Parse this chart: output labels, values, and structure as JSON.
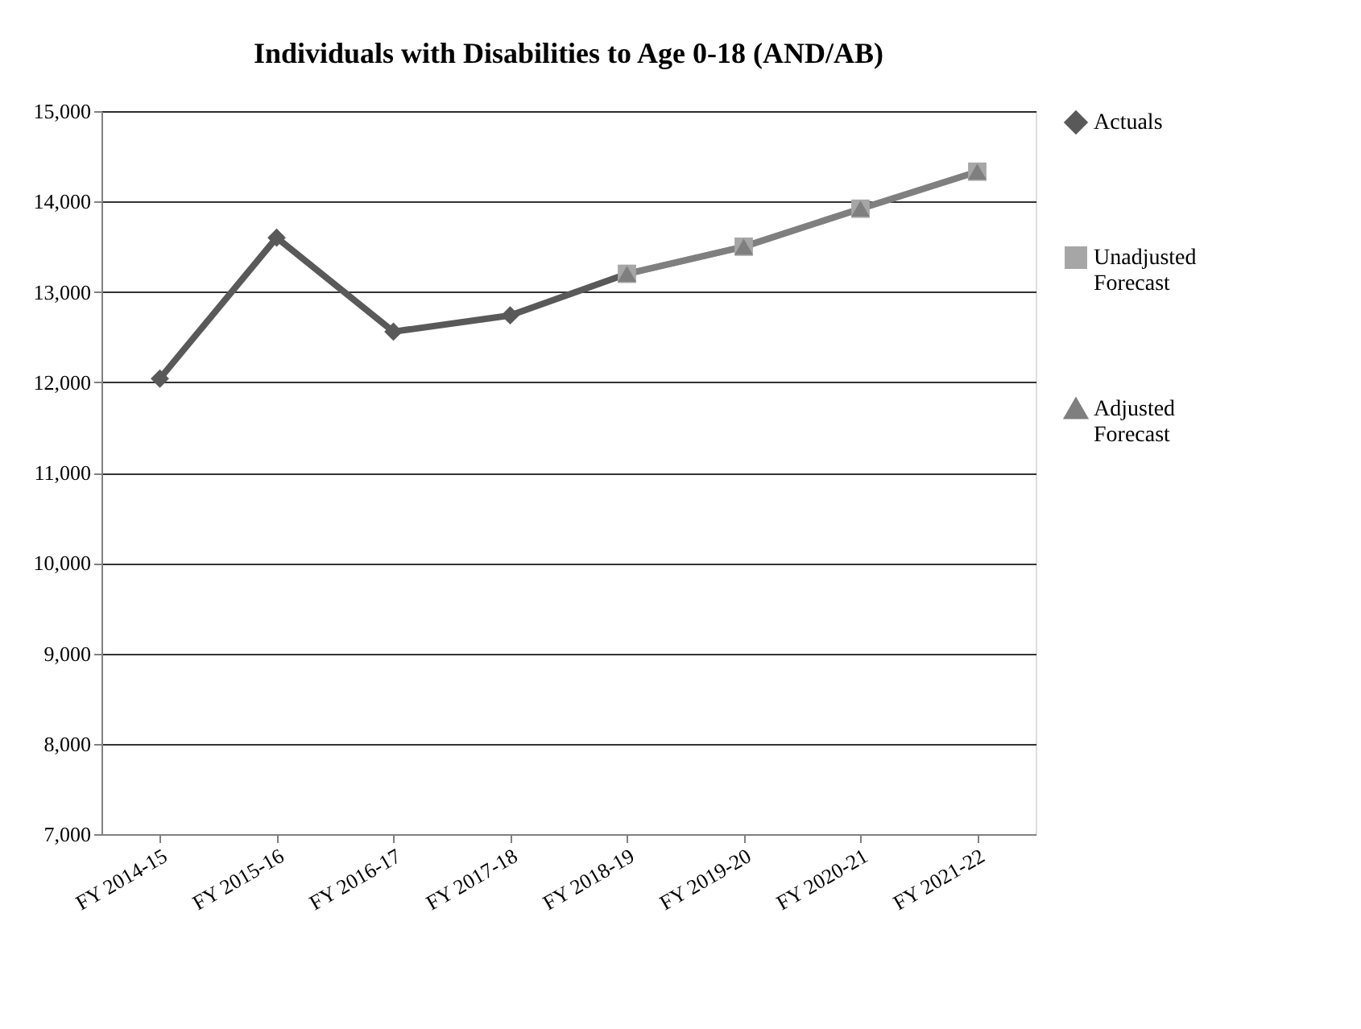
{
  "chart_data": {
    "type": "line",
    "title": "Individuals with Disabilities to Age 0-18 (AND/AB)",
    "categories": [
      "FY 2014-15",
      "FY 2015-16",
      "FY 2016-17",
      "FY 2017-18",
      "FY 2018-19",
      "FY 2019-20",
      "FY 2020-21",
      "FY 2021-22"
    ],
    "series": [
      {
        "name": "Actuals",
        "color": "#595959",
        "marker": "diamond",
        "values": [
          12040,
          13600,
          12560,
          12740,
          13200,
          null,
          null,
          null
        ]
      },
      {
        "name": "Unadjusted Forecast",
        "color": "#a6a6a6",
        "marker": "square",
        "values": [
          null,
          null,
          null,
          null,
          13200,
          13500,
          13920,
          14330
        ]
      },
      {
        "name": "Adjusted Forecast",
        "color": "#7f7f7f",
        "marker": "triangle",
        "values": [
          null,
          null,
          null,
          null,
          13200,
          13500,
          13920,
          14330
        ]
      }
    ],
    "ylim": [
      7000,
      15000
    ],
    "yticks": [
      {
        "value": 7000,
        "label": "7,000"
      },
      {
        "value": 8000,
        "label": "8,000"
      },
      {
        "value": 9000,
        "label": "9,000"
      },
      {
        "value": 10000,
        "label": "10,000"
      },
      {
        "value": 11000,
        "label": "11,000"
      },
      {
        "value": 12000,
        "label": "12,000"
      },
      {
        "value": 13000,
        "label": "13,000"
      },
      {
        "value": 14000,
        "label": "14,000"
      },
      {
        "value": 15000,
        "label": "15,000"
      }
    ],
    "grid": "y",
    "legend": "right",
    "line_style": "solid"
  }
}
